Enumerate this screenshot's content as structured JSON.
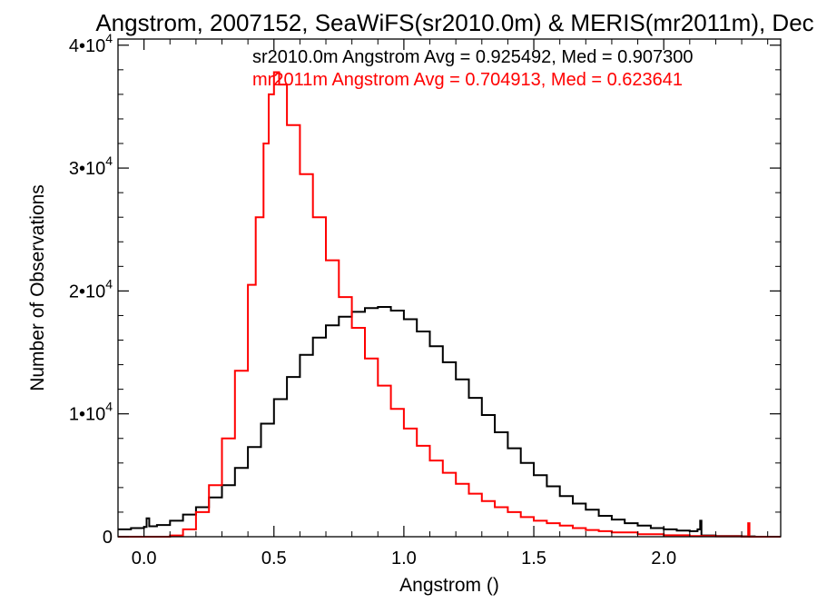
{
  "chart_data": {
    "type": "line",
    "title": "Angstrom, 2007152, SeaWiFS(sr2010.0m) & MERIS(mr2011m), Dec",
    "xlabel": "Angstrom ()",
    "ylabel": "Number of Observations",
    "xlim": [
      -0.1,
      2.45
    ],
    "ylim": [
      0,
      40500
    ],
    "x_ticks": [
      {
        "value": 0.0,
        "label": "0.0"
      },
      {
        "value": 0.5,
        "label": "0.5"
      },
      {
        "value": 1.0,
        "label": "1.0"
      },
      {
        "value": 1.5,
        "label": "1.5"
      },
      {
        "value": 2.0,
        "label": "2.0"
      }
    ],
    "y_ticks": [
      {
        "value": 0,
        "base": "0",
        "exp": ""
      },
      {
        "value": 10000,
        "base": "1•10",
        "exp": "4"
      },
      {
        "value": 20000,
        "base": "2•10",
        "exp": "4"
      },
      {
        "value": 30000,
        "base": "3•10",
        "exp": "4"
      },
      {
        "value": 40000,
        "base": "4•10",
        "exp": "4"
      }
    ],
    "grid": false,
    "legend_position": "top-right",
    "series": [
      {
        "name": "sr2010.0m",
        "color": "#000000",
        "legend": "sr2010.0m Angstrom Avg = 0.925492, Med = 0.907300",
        "points": [
          [
            -0.1,
            600
          ],
          [
            -0.05,
            700
          ],
          [
            0.0,
            800
          ],
          [
            0.01,
            1500
          ],
          [
            0.02,
            850
          ],
          [
            0.05,
            950
          ],
          [
            0.1,
            1300
          ],
          [
            0.15,
            1800
          ],
          [
            0.2,
            2400
          ],
          [
            0.25,
            3200
          ],
          [
            0.3,
            4200
          ],
          [
            0.35,
            5600
          ],
          [
            0.4,
            7300
          ],
          [
            0.45,
            9200
          ],
          [
            0.5,
            11200
          ],
          [
            0.55,
            13000
          ],
          [
            0.6,
            14800
          ],
          [
            0.65,
            16200
          ],
          [
            0.7,
            17200
          ],
          [
            0.75,
            17900
          ],
          [
            0.8,
            18300
          ],
          [
            0.85,
            18600
          ],
          [
            0.9,
            18700
          ],
          [
            0.95,
            18400
          ],
          [
            1.0,
            17700
          ],
          [
            1.05,
            16700
          ],
          [
            1.1,
            15500
          ],
          [
            1.15,
            14200
          ],
          [
            1.2,
            12800
          ],
          [
            1.25,
            11300
          ],
          [
            1.3,
            9900
          ],
          [
            1.35,
            8500
          ],
          [
            1.4,
            7200
          ],
          [
            1.45,
            6000
          ],
          [
            1.5,
            5000
          ],
          [
            1.55,
            4100
          ],
          [
            1.6,
            3300
          ],
          [
            1.65,
            2700
          ],
          [
            1.7,
            2200
          ],
          [
            1.75,
            1700
          ],
          [
            1.8,
            1400
          ],
          [
            1.85,
            1100
          ],
          [
            1.9,
            900
          ],
          [
            1.95,
            700
          ],
          [
            2.0,
            600
          ],
          [
            2.05,
            500
          ],
          [
            2.1,
            450
          ],
          [
            2.13,
            600
          ],
          [
            2.14,
            1300
          ],
          [
            2.145,
            100
          ],
          [
            2.2,
            50
          ],
          [
            2.3,
            30
          ],
          [
            2.35,
            0
          ],
          [
            2.45,
            0
          ]
        ]
      },
      {
        "name": "mr2011m",
        "color": "#ff0000",
        "legend": "mr2011m Angstrom Avg = 0.704913, Med = 0.623641",
        "points": [
          [
            -0.1,
            0
          ],
          [
            0.05,
            0
          ],
          [
            0.1,
            100
          ],
          [
            0.15,
            600
          ],
          [
            0.2,
            2000
          ],
          [
            0.25,
            4200
          ],
          [
            0.3,
            8000
          ],
          [
            0.35,
            13500
          ],
          [
            0.4,
            20500
          ],
          [
            0.43,
            26000
          ],
          [
            0.46,
            32000
          ],
          [
            0.48,
            36000
          ],
          [
            0.5,
            37800
          ],
          [
            0.52,
            36800
          ],
          [
            0.55,
            33500
          ],
          [
            0.6,
            29500
          ],
          [
            0.65,
            26000
          ],
          [
            0.7,
            22500
          ],
          [
            0.75,
            19500
          ],
          [
            0.8,
            17000
          ],
          [
            0.85,
            14500
          ],
          [
            0.9,
            12300
          ],
          [
            0.95,
            10400
          ],
          [
            1.0,
            8800
          ],
          [
            1.05,
            7400
          ],
          [
            1.1,
            6200
          ],
          [
            1.15,
            5200
          ],
          [
            1.2,
            4300
          ],
          [
            1.25,
            3500
          ],
          [
            1.3,
            2900
          ],
          [
            1.35,
            2400
          ],
          [
            1.4,
            2000
          ],
          [
            1.45,
            1600
          ],
          [
            1.5,
            1300
          ],
          [
            1.55,
            1100
          ],
          [
            1.6,
            900
          ],
          [
            1.65,
            700
          ],
          [
            1.7,
            550
          ],
          [
            1.75,
            450
          ],
          [
            1.8,
            350
          ],
          [
            1.9,
            200
          ],
          [
            2.0,
            120
          ],
          [
            2.1,
            60
          ],
          [
            2.2,
            30
          ],
          [
            2.3,
            10
          ],
          [
            2.325,
            1100
          ],
          [
            2.33,
            0
          ],
          [
            2.45,
            0
          ]
        ]
      }
    ]
  }
}
